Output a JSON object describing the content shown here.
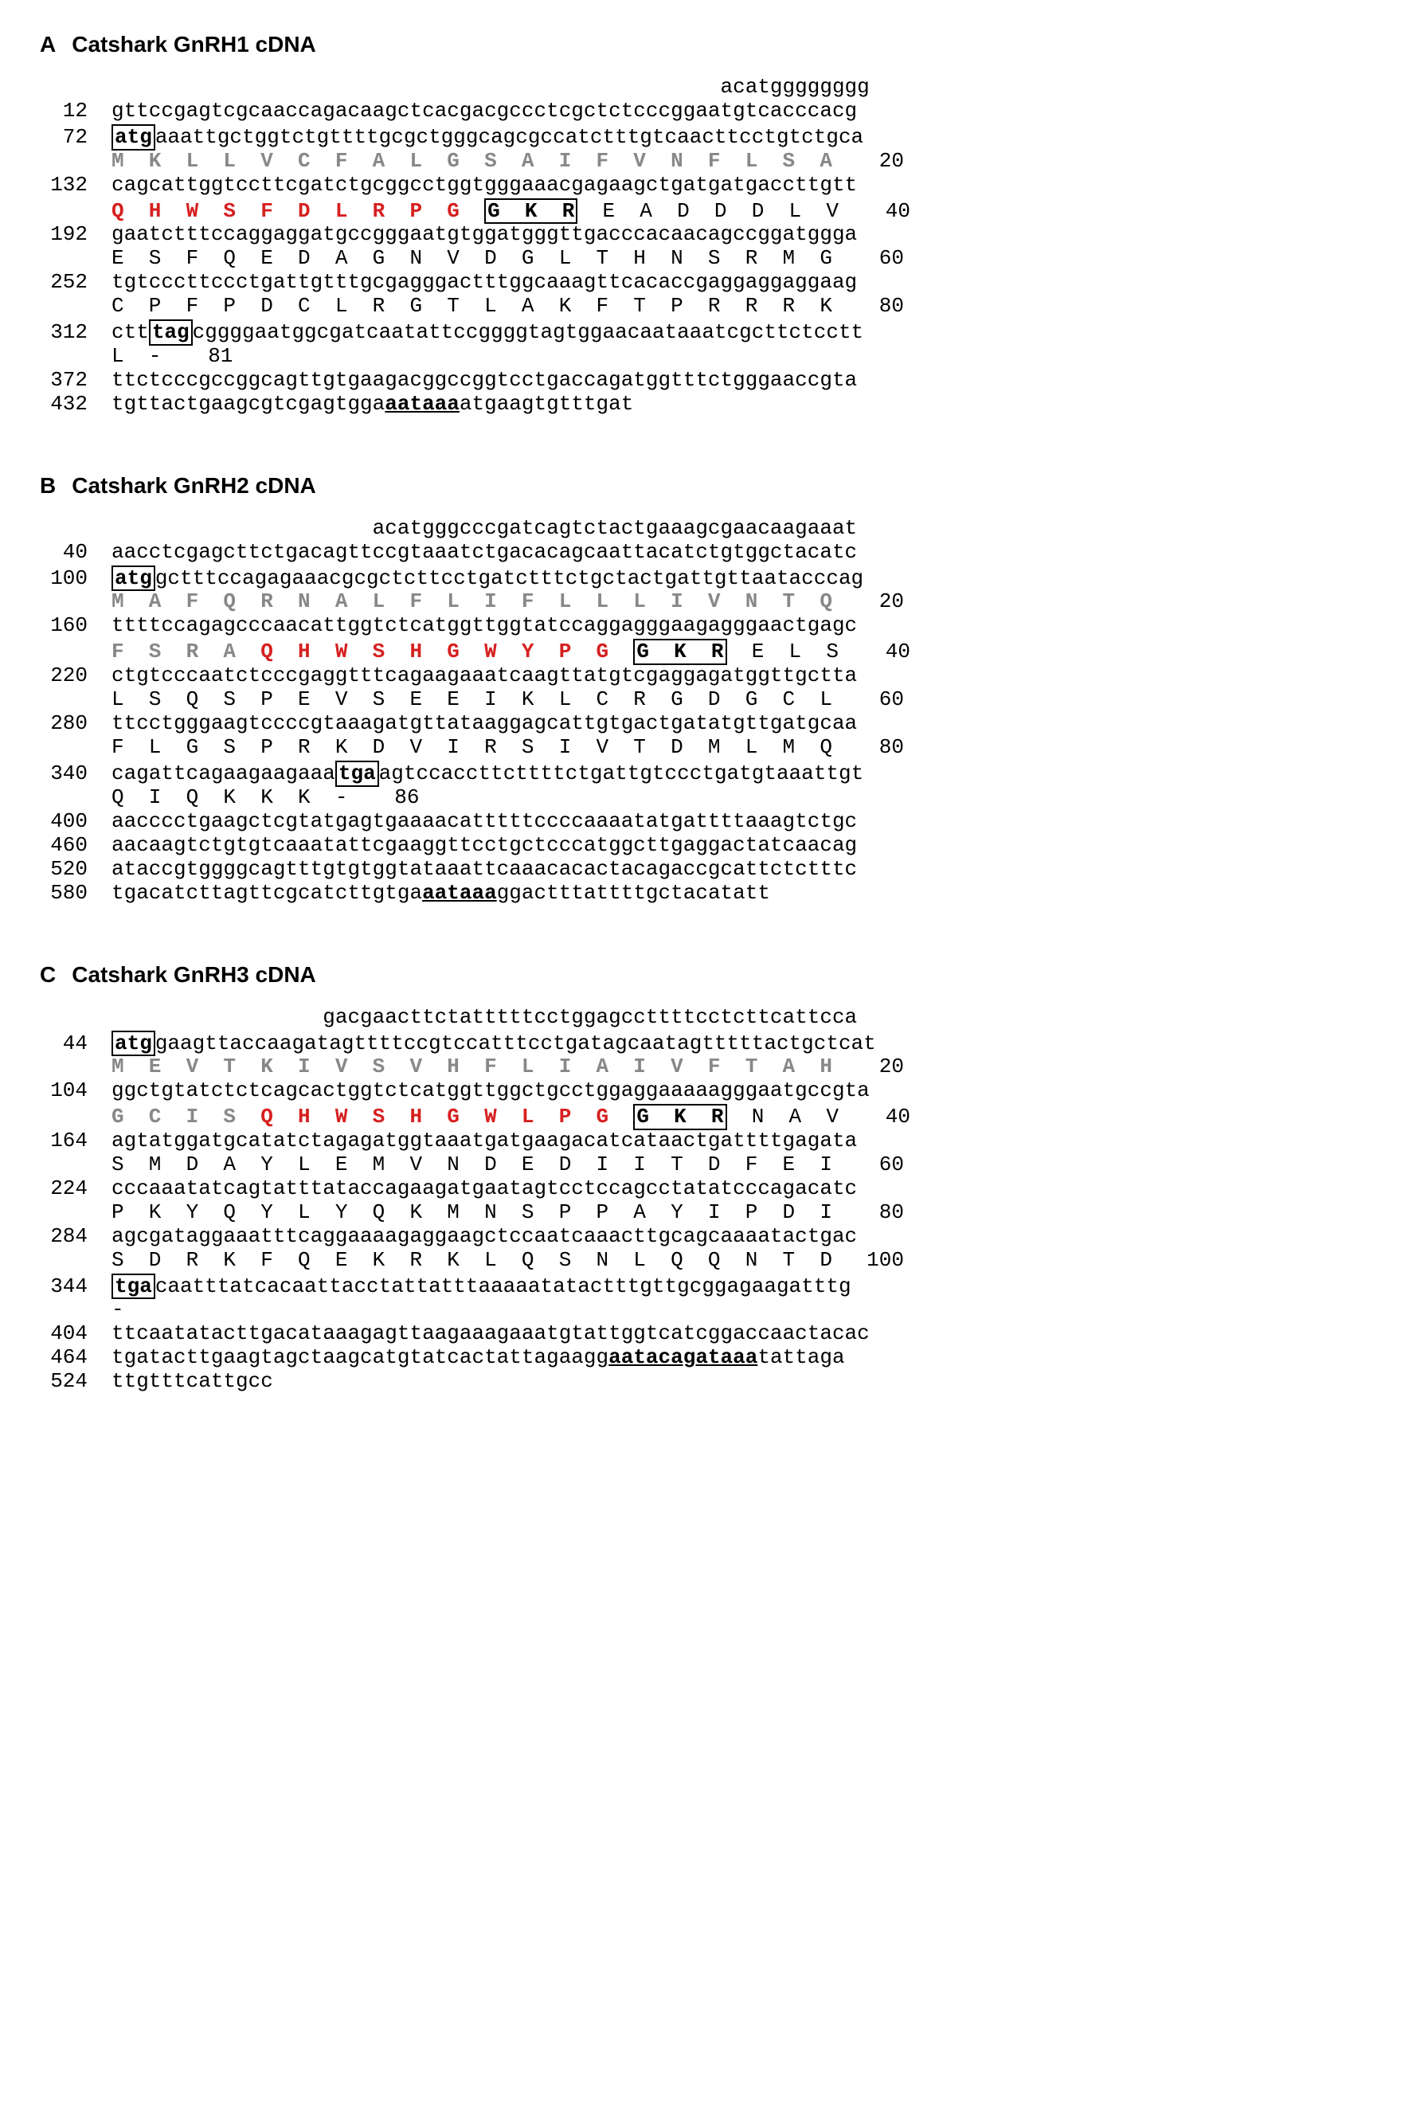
{
  "figure": {
    "font_family_body": "Arial",
    "font_family_seq": "Courier New",
    "font_size_header_pt": 28,
    "font_size_seq_pt": 26,
    "colors": {
      "background": "#ffffff",
      "text": "#000000",
      "signal_peptide": "#888888",
      "mature_peptide": "#d62020",
      "box_border": "#000000"
    }
  },
  "panels": [
    {
      "id": "A",
      "title": "Catshark GnRH1 cDNA",
      "leader_indent_spaces": 49,
      "leader_seq": "acatgggggggg",
      "rows": [
        {
          "type": "nuc",
          "pos": 12,
          "segs": [
            {
              "t": "gttccgagtcgcaaccagacaagctcacgacgccctcgctctcccggaatgtcacccacg",
              "s": "nuc"
            }
          ]
        },
        {
          "type": "nuc",
          "pos": 72,
          "segs": [
            {
              "t": "atg",
              "s": "boxed"
            },
            {
              "t": "aaattgctggtctgttttgcgctgggcagcgccatctttgtcaacttcctgtctgca",
              "s": "nuc"
            }
          ]
        },
        {
          "type": "aa",
          "posR": 20,
          "segs": [
            {
              "t": "M  K  L  L  V  C  F  A  L  G  S  A  I  F  V  N  F  L  S  A",
              "s": "aa-signal"
            }
          ]
        },
        {
          "type": "nuc",
          "pos": 132,
          "segs": [
            {
              "t": "cagcattggtccttcgatctgcggcctggtgggaaacgagaagctgatgatgaccttgtt",
              "s": "nuc"
            }
          ]
        },
        {
          "type": "aa",
          "posR": 40,
          "segs": [
            {
              "t": "Q  H  W  S  F  D  L  R  P  G  ",
              "s": "aa-mature"
            },
            {
              "t": "G  K  R",
              "s": "aa-gkr boxed-gkr"
            },
            {
              "t": "  E  A  D  D  D  L  V",
              "s": "aa"
            }
          ]
        },
        {
          "type": "nuc",
          "pos": 192,
          "segs": [
            {
              "t": "gaatctttccaggaggatgccgggaatgtggatgggttgacccacaacagccggatggga",
              "s": "nuc"
            }
          ]
        },
        {
          "type": "aa",
          "posR": 60,
          "segs": [
            {
              "t": "E  S  F  Q  E  D  A  G  N  V  D  G  L  T  H  N  S  R  M  G",
              "s": "aa"
            }
          ]
        },
        {
          "type": "nuc",
          "pos": 252,
          "segs": [
            {
              "t": "tgtcccttccctgattgtttgcgagggactttggcaaagttcacaccgaggaggaggaag",
              "s": "nuc"
            }
          ]
        },
        {
          "type": "aa",
          "posR": 80,
          "segs": [
            {
              "t": "C  P  F  P  D  C  L  R  G  T  L  A  K  F  T  P  R  R  R  K",
              "s": "aa"
            }
          ]
        },
        {
          "type": "nuc",
          "pos": 312,
          "segs": [
            {
              "t": "ctt",
              "s": "nuc"
            },
            {
              "t": "tag",
              "s": "boxed"
            },
            {
              "t": "cggggaatggcgatcaatattccggggtagtggaacaataaatcgcttctcctt",
              "s": "nuc"
            }
          ]
        },
        {
          "type": "aa",
          "posR": 81,
          "segs": [
            {
              "t": "L  -",
              "s": "aa"
            }
          ]
        },
        {
          "type": "nuc",
          "pos": 372,
          "segs": [
            {
              "t": "ttctcccgccggcagttgtgaagacggccggtcctgaccagatggtttctgggaaccgta",
              "s": "nuc"
            }
          ]
        },
        {
          "type": "nuc",
          "pos": 432,
          "segs": [
            {
              "t": "tgttactgaagcgtcgagtgga",
              "s": "nuc"
            },
            {
              "t": "aataaa",
              "s": "bold ul"
            },
            {
              "t": "atgaagtgtttgat",
              "s": "nuc"
            }
          ]
        }
      ]
    },
    {
      "id": "B",
      "title": "Catshark GnRH2 cDNA",
      "leader_indent_spaces": 21,
      "leader_seq": "acatgggcccgatcagtctactgaaagcgaacaagaaat",
      "rows": [
        {
          "type": "nuc",
          "pos": 40,
          "segs": [
            {
              "t": "aacctcgagcttctgacagttccgtaaatctgacacagcaattacatctgtggctacatc",
              "s": "nuc"
            }
          ]
        },
        {
          "type": "nuc",
          "pos": 100,
          "segs": [
            {
              "t": "atg",
              "s": "boxed"
            },
            {
              "t": "gctttccagagaaacgcgctcttcctgatctttctgctactgattgttaatacccag",
              "s": "nuc"
            }
          ]
        },
        {
          "type": "aa",
          "posR": 20,
          "segs": [
            {
              "t": "M  A  F  Q  R  N  A  L  F  L  I  F  L  L  L  I  V  N  T  Q",
              "s": "aa-signal"
            }
          ]
        },
        {
          "type": "nuc",
          "pos": 160,
          "segs": [
            {
              "t": "ttttccagagcccaacattggtctcatggttggtatccaggagggaagagggaactgagc",
              "s": "nuc"
            }
          ]
        },
        {
          "type": "aa",
          "posR": 40,
          "segs": [
            {
              "t": "F  S  R  A  ",
              "s": "aa-signal"
            },
            {
              "t": "Q  H  W  S  H  G  W  Y  P  G  ",
              "s": "aa-mature"
            },
            {
              "t": "G  K  R",
              "s": "aa-gkr boxed-gkr"
            },
            {
              "t": "  E  L  S",
              "s": "aa"
            }
          ]
        },
        {
          "type": "nuc",
          "pos": 220,
          "segs": [
            {
              "t": "ctgtcccaatctcccgaggtttcagaagaaatcaagttatgtcgaggagatggttgctta",
              "s": "nuc"
            }
          ]
        },
        {
          "type": "aa",
          "posR": 60,
          "segs": [
            {
              "t": "L  S  Q  S  P  E  V  S  E  E  I  K  L  C  R  G  D  G  C  L",
              "s": "aa"
            }
          ]
        },
        {
          "type": "nuc",
          "pos": 280,
          "segs": [
            {
              "t": "ttcctgggaagtccccgtaaagatgttataaggagcattgtgactgatatgttgatgcaa",
              "s": "nuc"
            }
          ]
        },
        {
          "type": "aa",
          "posR": 80,
          "segs": [
            {
              "t": "F  L  G  S  P  R  K  D  V  I  R  S  I  V  T  D  M  L  M  Q",
              "s": "aa"
            }
          ]
        },
        {
          "type": "nuc",
          "pos": 340,
          "segs": [
            {
              "t": "cagattcagaagaagaaa",
              "s": "nuc"
            },
            {
              "t": "tga",
              "s": "boxed"
            },
            {
              "t": "agtccaccttcttttctgattgtccctgatgtaaattgt",
              "s": "nuc"
            }
          ]
        },
        {
          "type": "aa",
          "posR": 86,
          "segs": [
            {
              "t": "Q  I  Q  K  K  K  -",
              "s": "aa"
            }
          ]
        },
        {
          "type": "nuc",
          "pos": 400,
          "segs": [
            {
              "t": "aacccctgaagctcgtatgagtgaaaacatttttccccaaaatatgattttaaagtctgc",
              "s": "nuc"
            }
          ]
        },
        {
          "type": "nuc",
          "pos": 460,
          "segs": [
            {
              "t": "aacaagtctgtgtcaaatattcgaaggttcctgctcccatggcttgaggactatcaacag",
              "s": "nuc"
            }
          ]
        },
        {
          "type": "nuc",
          "pos": 520,
          "segs": [
            {
              "t": "ataccgtggggcagtttgtgtggtataaattcaaacacactacagaccgcattctctttc",
              "s": "nuc"
            }
          ]
        },
        {
          "type": "nuc",
          "pos": 580,
          "segs": [
            {
              "t": "tgacatcttagttcgcatcttgtga",
              "s": "nuc"
            },
            {
              "t": "aataaa",
              "s": "bold ul"
            },
            {
              "t": "ggactttattttgctacatatt",
              "s": "nuc"
            }
          ]
        }
      ]
    },
    {
      "id": "C",
      "title": "Catshark GnRH3 cDNA",
      "leader_indent_spaces": 17,
      "leader_seq": "gacgaacttctatttttcctggagccttttcctcttcattcca",
      "rows": [
        {
          "type": "nuc",
          "pos": 44,
          "segs": [
            {
              "t": "atg",
              "s": "boxed"
            },
            {
              "t": "gaagttaccaagatagttttccgtccatttcctgatagcaatagtttttactgctcat",
              "s": "nuc"
            }
          ]
        },
        {
          "type": "aa",
          "posR": 20,
          "segs": [
            {
              "t": "M  E  V  T  K  I  V  S  V  H  F  L  I  A  I  V  F  T  A  H",
              "s": "aa-signal"
            }
          ]
        },
        {
          "type": "nuc",
          "pos": 104,
          "segs": [
            {
              "t": "ggctgtatctctcagcactggtctcatggttggctgcctggaggaaaaagggaatgccgta",
              "s": "nuc"
            }
          ]
        },
        {
          "type": "aa",
          "posR": 40,
          "segs": [
            {
              "t": "G  C  I  S  ",
              "s": "aa-signal"
            },
            {
              "t": "Q  H  W  S  H  G  W  L  P  G  ",
              "s": "aa-mature"
            },
            {
              "t": "G  K  R",
              "s": "aa-gkr boxed-gkr"
            },
            {
              "t": "  N  A  V",
              "s": "aa"
            }
          ]
        },
        {
          "type": "nuc",
          "pos": 164,
          "segs": [
            {
              "t": "agtatggatgcatatctagagatggtaaatgatgaagacatcataactgattttgagata",
              "s": "nuc"
            }
          ]
        },
        {
          "type": "aa",
          "posR": 60,
          "segs": [
            {
              "t": "S  M  D  A  Y  L  E  M  V  N  D  E  D  I  I  T  D  F  E  I",
              "s": "aa"
            }
          ]
        },
        {
          "type": "nuc",
          "pos": 224,
          "segs": [
            {
              "t": "cccaaatatcagtatttataccagaagatgaatagtcctccagcctatatcccagacatc",
              "s": "nuc"
            }
          ]
        },
        {
          "type": "aa",
          "posR": 80,
          "segs": [
            {
              "t": "P  K  Y  Q  Y  L  Y  Q  K  M  N  S  P  P  A  Y  I  P  D  I",
              "s": "aa"
            }
          ]
        },
        {
          "type": "nuc",
          "pos": 284,
          "segs": [
            {
              "t": "agcgataggaaatttcaggaaaagaggaagctccaatcaaacttgcagcaaaatactgac",
              "s": "nuc"
            }
          ]
        },
        {
          "type": "aa",
          "posR": 100,
          "segs": [
            {
              "t": "S  D  R  K  F  Q  E  K  R  K  L  Q  S  N  L  Q  Q  N  T  D",
              "s": "aa"
            }
          ]
        },
        {
          "type": "nuc",
          "pos": 344,
          "segs": [
            {
              "t": "tga",
              "s": "boxed"
            },
            {
              "t": "caatttatcacaattacctattatttaaaaatatactttgttgcggagaagatttg",
              "s": "nuc"
            }
          ]
        },
        {
          "type": "aa",
          "segs": [
            {
              "t": "-",
              "s": "aa"
            }
          ]
        },
        {
          "type": "nuc",
          "pos": 404,
          "segs": [
            {
              "t": "ttcaatatacttgacataaagagttaagaaagaaatgtattggtcatcggaccaactacac",
              "s": "nuc"
            }
          ]
        },
        {
          "type": "nuc",
          "pos": 464,
          "segs": [
            {
              "t": "tgatacttgaagtagctaagcatgtatcactattagaagg",
              "s": "nuc"
            },
            {
              "t": "aatacagataaa",
              "s": "bold ul"
            },
            {
              "t": "tattaga",
              "s": "nuc"
            }
          ]
        },
        {
          "type": "nuc",
          "pos": 524,
          "segs": [
            {
              "t": "ttgtttcattgcc",
              "s": "nuc"
            }
          ]
        }
      ]
    }
  ]
}
